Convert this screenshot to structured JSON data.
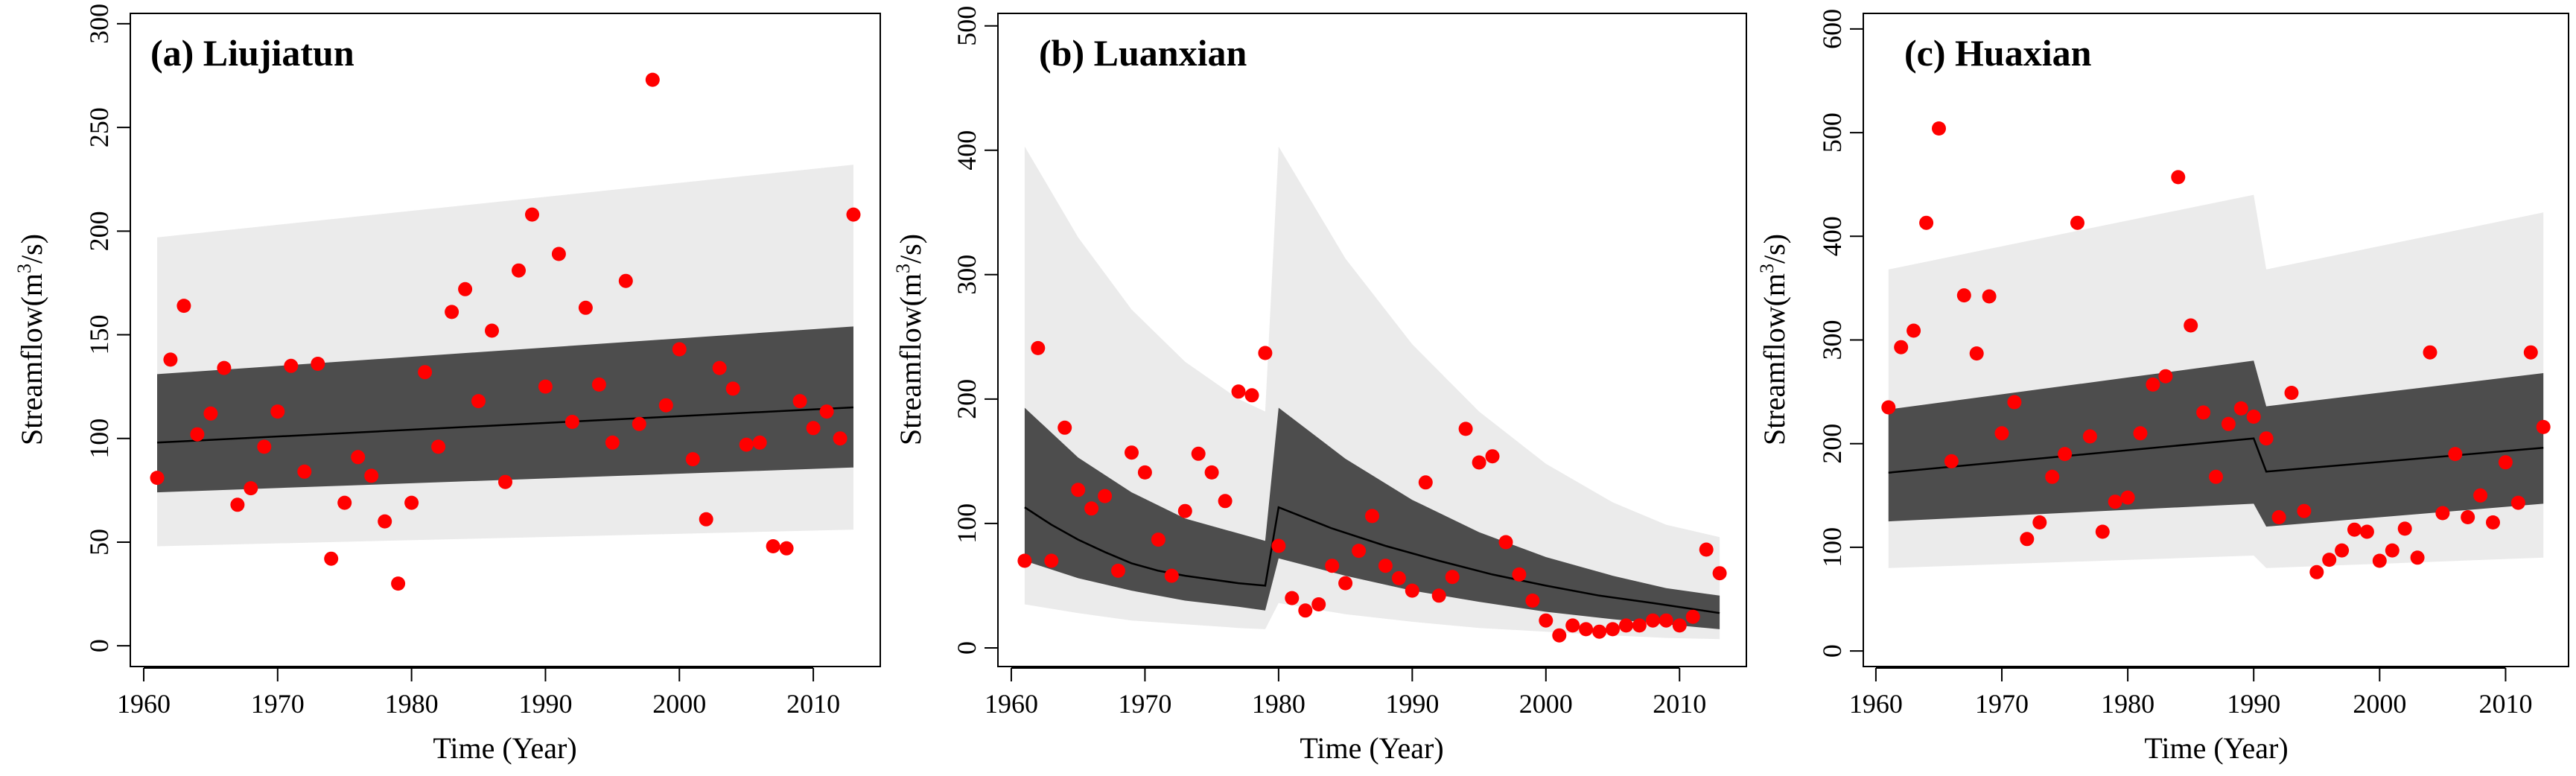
{
  "figure": {
    "xlabel": "Time (Year)",
    "ylabel_main": "Streamflow(m",
    "ylabel_sup": "3",
    "ylabel_tail": "/s)"
  },
  "colors": {
    "outer_band": "#ebebeb",
    "inner_band": "#4d4d4d",
    "median": "#000000",
    "points": "#ff0000"
  },
  "chart_data": [
    {
      "type": "scatter",
      "title": "(a) Liujiatun",
      "xlabel": "Time (Year)",
      "ylabel": "Streamflow(m3/s)",
      "xlim": [
        1959,
        2015
      ],
      "ylim": [
        -10,
        305
      ],
      "xticks": [
        1960,
        1970,
        1980,
        1990,
        2000,
        2010
      ],
      "yticks": [
        0,
        50,
        100,
        150,
        200,
        250,
        300
      ],
      "observed": [
        [
          1961,
          81
        ],
        [
          1962,
          138
        ],
        [
          1963,
          164
        ],
        [
          1964,
          102
        ],
        [
          1965,
          112
        ],
        [
          1966,
          134
        ],
        [
          1967,
          68
        ],
        [
          1968,
          76
        ],
        [
          1969,
          96
        ],
        [
          1970,
          113
        ],
        [
          1971,
          135
        ],
        [
          1972,
          84
        ],
        [
          1973,
          136
        ],
        [
          1974,
          42
        ],
        [
          1975,
          69
        ],
        [
          1976,
          91
        ],
        [
          1977,
          82
        ],
        [
          1978,
          60
        ],
        [
          1979,
          30
        ],
        [
          1980,
          69
        ],
        [
          1981,
          132
        ],
        [
          1982,
          96
        ],
        [
          1983,
          161
        ],
        [
          1984,
          172
        ],
        [
          1985,
          118
        ],
        [
          1986,
          152
        ],
        [
          1987,
          79
        ],
        [
          1988,
          181
        ],
        [
          1989,
          208
        ],
        [
          1990,
          125
        ],
        [
          1991,
          189
        ],
        [
          1992,
          108
        ],
        [
          1993,
          163
        ],
        [
          1994,
          126
        ],
        [
          1995,
          98
        ],
        [
          1996,
          176
        ],
        [
          1997,
          107
        ],
        [
          1998,
          273
        ],
        [
          1999,
          116
        ],
        [
          2000,
          143
        ],
        [
          2001,
          90
        ],
        [
          2002,
          61
        ],
        [
          2003,
          134
        ],
        [
          2004,
          124
        ],
        [
          2005,
          97
        ],
        [
          2006,
          98
        ],
        [
          2007,
          48
        ],
        [
          2008,
          47
        ],
        [
          2009,
          118
        ],
        [
          2010,
          105
        ],
        [
          2011,
          113
        ],
        [
          2012,
          100
        ],
        [
          2013,
          208
        ]
      ],
      "median": [
        [
          1961,
          98
        ],
        [
          2013,
          115
        ]
      ],
      "inner_band": [
        [
          1961,
          74,
          131
        ],
        [
          2013,
          86,
          154
        ]
      ],
      "outer_band": [
        [
          1961,
          48,
          197
        ],
        [
          2013,
          56,
          232
        ]
      ]
    },
    {
      "type": "scatter",
      "title": "(b) Luanxian",
      "xlabel": "Time (Year)",
      "ylabel": "Streamflow(m3/s)",
      "xlim": [
        1959,
        2015
      ],
      "ylim": [
        -15,
        510
      ],
      "xticks": [
        1960,
        1970,
        1980,
        1990,
        2000,
        2010
      ],
      "yticks": [
        0,
        100,
        200,
        300,
        400,
        500
      ],
      "observed": [
        [
          1961,
          70
        ],
        [
          1962,
          241
        ],
        [
          1963,
          70
        ],
        [
          1964,
          177
        ],
        [
          1965,
          127
        ],
        [
          1966,
          112
        ],
        [
          1967,
          122
        ],
        [
          1968,
          62
        ],
        [
          1969,
          157
        ],
        [
          1970,
          141
        ],
        [
          1971,
          87
        ],
        [
          1972,
          58
        ],
        [
          1973,
          110
        ],
        [
          1974,
          156
        ],
        [
          1975,
          141
        ],
        [
          1976,
          118
        ],
        [
          1977,
          206
        ],
        [
          1978,
          203
        ],
        [
          1979,
          237
        ],
        [
          1980,
          82
        ],
        [
          1981,
          40
        ],
        [
          1982,
          30
        ],
        [
          1983,
          35
        ],
        [
          1984,
          66
        ],
        [
          1985,
          52
        ],
        [
          1986,
          78
        ],
        [
          1987,
          106
        ],
        [
          1988,
          66
        ],
        [
          1989,
          56
        ],
        [
          1990,
          46
        ],
        [
          1991,
          133
        ],
        [
          1992,
          42
        ],
        [
          1993,
          57
        ],
        [
          1994,
          176
        ],
        [
          1995,
          149
        ],
        [
          1996,
          154
        ],
        [
          1997,
          85
        ],
        [
          1998,
          59
        ],
        [
          1999,
          38
        ],
        [
          2000,
          22
        ],
        [
          2001,
          10
        ],
        [
          2002,
          18
        ],
        [
          2003,
          15
        ],
        [
          2004,
          13
        ],
        [
          2005,
          15
        ],
        [
          2006,
          18
        ],
        [
          2007,
          18
        ],
        [
          2008,
          22
        ],
        [
          2009,
          22
        ],
        [
          2010,
          18
        ],
        [
          2011,
          25
        ],
        [
          2012,
          79
        ],
        [
          2013,
          60
        ]
      ],
      "median": [
        [
          1961,
          113
        ],
        [
          1963,
          99
        ],
        [
          1965,
          87
        ],
        [
          1967,
          77
        ],
        [
          1969,
          68
        ],
        [
          1971,
          62
        ],
        [
          1973,
          58
        ],
        [
          1975,
          55
        ],
        [
          1977,
          52
        ],
        [
          1979,
          50
        ],
        [
          1980,
          113
        ],
        [
          1984,
          96
        ],
        [
          1988,
          82
        ],
        [
          1992,
          70
        ],
        [
          1996,
          59
        ],
        [
          2000,
          50
        ],
        [
          2004,
          42
        ],
        [
          2008,
          36
        ],
        [
          2013,
          28
        ]
      ],
      "inner_band": [
        [
          1961,
          70,
          193
        ],
        [
          1965,
          56,
          153
        ],
        [
          1969,
          46,
          125
        ],
        [
          1973,
          38,
          104
        ],
        [
          1977,
          33,
          92
        ],
        [
          1979,
          30,
          86
        ],
        [
          1980,
          72,
          193
        ],
        [
          1985,
          58,
          152
        ],
        [
          1990,
          46,
          119
        ],
        [
          1995,
          37,
          93
        ],
        [
          2000,
          29,
          73
        ],
        [
          2005,
          23,
          58
        ],
        [
          2009,
          19,
          48
        ],
        [
          2013,
          15,
          42
        ]
      ],
      "outer_band": [
        [
          1961,
          35,
          403
        ],
        [
          1965,
          28,
          330
        ],
        [
          1969,
          22,
          272
        ],
        [
          1973,
          19,
          230
        ],
        [
          1977,
          16,
          200
        ],
        [
          1979,
          15,
          190
        ],
        [
          1980,
          36,
          403
        ],
        [
          1985,
          27,
          313
        ],
        [
          1990,
          21,
          244
        ],
        [
          1995,
          16,
          190
        ],
        [
          2000,
          13,
          148
        ],
        [
          2005,
          10,
          117
        ],
        [
          2009,
          8,
          99
        ],
        [
          2013,
          7,
          89
        ]
      ]
    },
    {
      "type": "scatter",
      "title": "(c) Huaxian",
      "xlabel": "Time (Year)",
      "ylabel": "Streamflow(m3/s)",
      "xlim": [
        1959,
        2015
      ],
      "ylim": [
        -15,
        615
      ],
      "xticks": [
        1960,
        1970,
        1980,
        1990,
        2000,
        2010
      ],
      "yticks": [
        0,
        100,
        200,
        300,
        400,
        500,
        600
      ],
      "observed": [
        [
          1961,
          235
        ],
        [
          1962,
          293
        ],
        [
          1963,
          309
        ],
        [
          1964,
          413
        ],
        [
          1965,
          504
        ],
        [
          1966,
          183
        ],
        [
          1967,
          343
        ],
        [
          1968,
          287
        ],
        [
          1969,
          342
        ],
        [
          1970,
          210
        ],
        [
          1971,
          240
        ],
        [
          1972,
          108
        ],
        [
          1973,
          124
        ],
        [
          1974,
          168
        ],
        [
          1975,
          190
        ],
        [
          1976,
          413
        ],
        [
          1977,
          207
        ],
        [
          1978,
          115
        ],
        [
          1979,
          144
        ],
        [
          1980,
          148
        ],
        [
          1981,
          210
        ],
        [
          1982,
          257
        ],
        [
          1983,
          265
        ],
        [
          1984,
          457
        ],
        [
          1985,
          314
        ],
        [
          1986,
          230
        ],
        [
          1987,
          168
        ],
        [
          1988,
          219
        ],
        [
          1989,
          234
        ],
        [
          1990,
          226
        ],
        [
          1991,
          205
        ],
        [
          1992,
          129
        ],
        [
          1993,
          249
        ],
        [
          1994,
          135
        ],
        [
          1995,
          76
        ],
        [
          1996,
          88
        ],
        [
          1997,
          97
        ],
        [
          1998,
          117
        ],
        [
          1999,
          115
        ],
        [
          2000,
          87
        ],
        [
          2001,
          97
        ],
        [
          2002,
          118
        ],
        [
          2003,
          90
        ],
        [
          2004,
          288
        ],
        [
          2005,
          133
        ],
        [
          2006,
          190
        ],
        [
          2007,
          129
        ],
        [
          2008,
          150
        ],
        [
          2009,
          124
        ],
        [
          2010,
          182
        ],
        [
          2011,
          143
        ],
        [
          2012,
          288
        ],
        [
          2013,
          216
        ]
      ],
      "median": [
        [
          1961,
          172
        ],
        [
          1990,
          205
        ],
        [
          1991,
          173
        ],
        [
          2013,
          196
        ]
      ],
      "inner_band": [
        [
          1961,
          125,
          233
        ],
        [
          1990,
          142,
          280
        ],
        [
          1991,
          120,
          236
        ],
        [
          2013,
          142,
          268
        ]
      ],
      "outer_band": [
        [
          1961,
          80,
          368
        ],
        [
          1990,
          92,
          440
        ],
        [
          1991,
          80,
          368
        ],
        [
          2013,
          90,
          423
        ]
      ]
    }
  ]
}
